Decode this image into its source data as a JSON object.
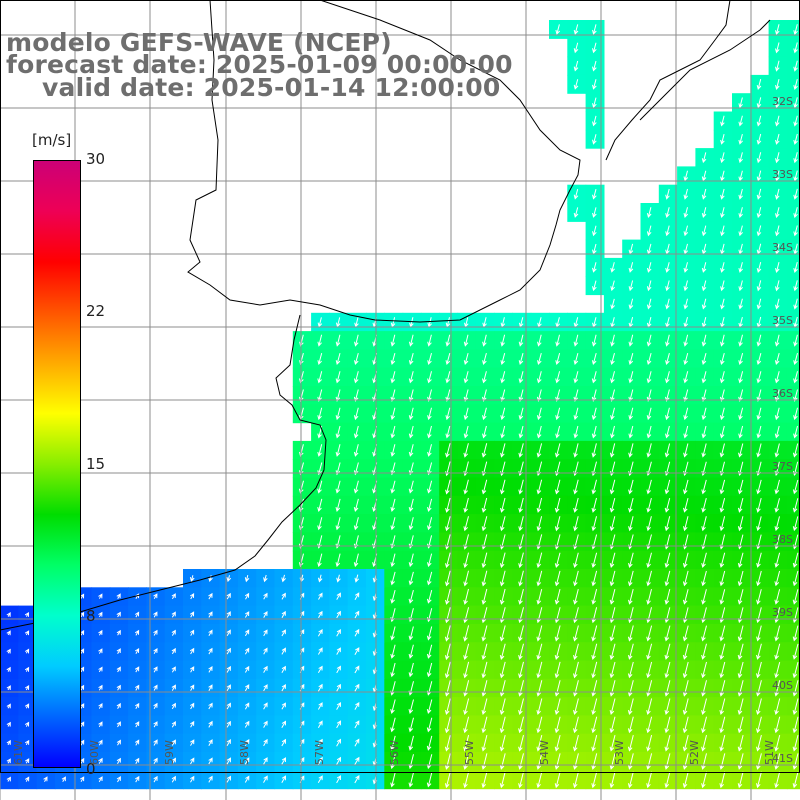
{
  "title": {
    "line1": "modelo GEFS-WAVE (NCEP)",
    "line2": "forecast date: 2025-01-09 00:00:00",
    "line3": "valid date: 2025-01-14 12:00:00"
  },
  "colorbar": {
    "unit": "[m/s]",
    "ticks": [
      "30",
      "22",
      "15",
      "8",
      "0"
    ],
    "tick_values": [
      30,
      22,
      15,
      8,
      0
    ],
    "vmin": 0,
    "vmax": 30,
    "colors": [
      "#0000ff",
      "#0066ff",
      "#00ccff",
      "#00ffcc",
      "#00ff66",
      "#00dd00",
      "#88ee00",
      "#ffff00",
      "#ffaa00",
      "#ff5500",
      "#ff0000",
      "#ee0055",
      "#cc0077"
    ]
  },
  "lat_labels": [
    "32S",
    "33S",
    "34S",
    "35S",
    "36S",
    "37S",
    "38S",
    "39S",
    "40S",
    "41S"
  ],
  "lon_labels": [
    "61W",
    "60W",
    "59W",
    "58W",
    "57W",
    "56W",
    "55W",
    "54W",
    "53W",
    "52W",
    "51W"
  ],
  "field": {
    "variable": "wind speed",
    "units": "m/s",
    "vector_direction": "arrows point toward south (northerly wind) over most of the sea; northeastward near southwest coast"
  },
  "colors": {
    "title_text": "#6e6e6e",
    "grid": "#8c8c8c",
    "coast": "#000000",
    "arrow": "#ffffff",
    "land": "#ffffff"
  }
}
